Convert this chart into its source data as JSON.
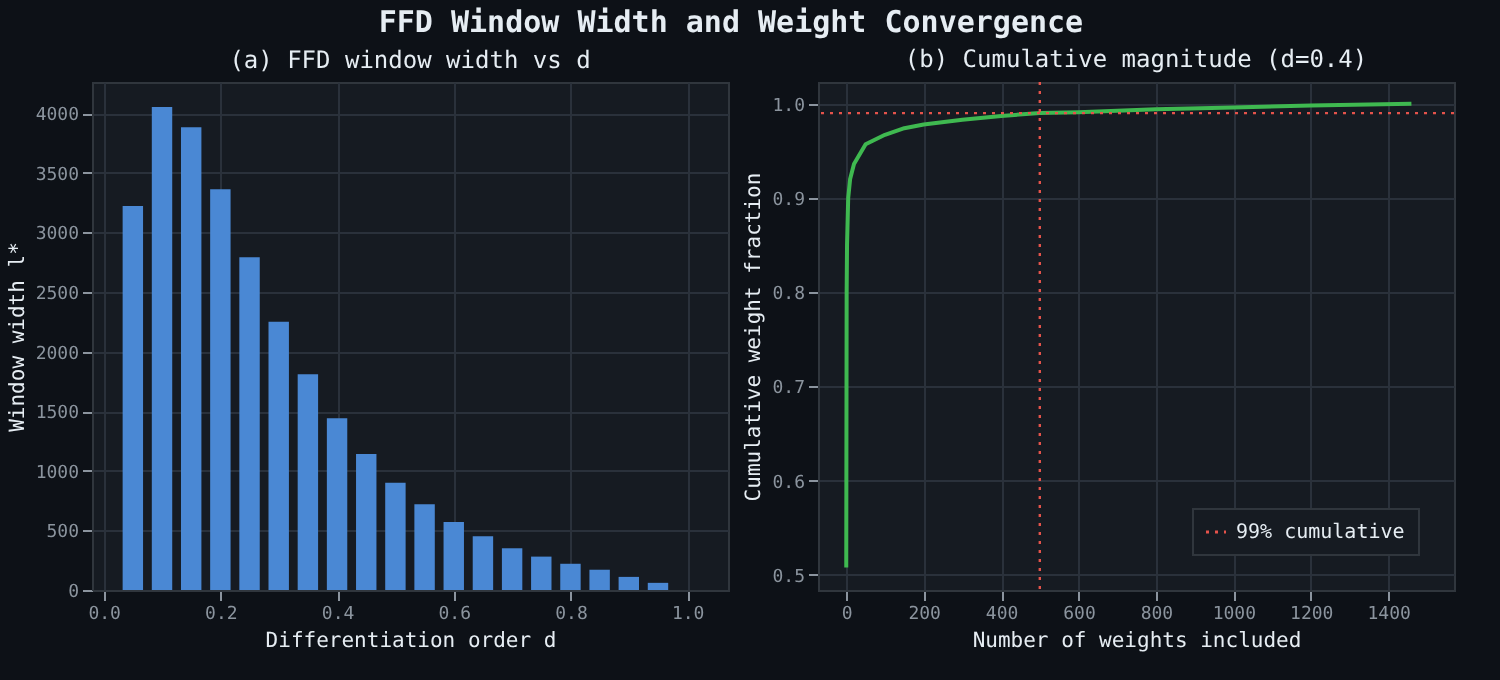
{
  "chart_data": [
    {
      "type": "bar",
      "title": "(a) FFD window width vs d",
      "xlabel": "Differentiation order d",
      "ylabel": "Window width l*",
      "annotations": [
        "FFD Window Width and Weight Convergence"
      ],
      "x": [
        0.05,
        0.1,
        0.15,
        0.2,
        0.25,
        0.3,
        0.35,
        0.4,
        0.45,
        0.5,
        0.55,
        0.6,
        0.65,
        0.7,
        0.75,
        0.8,
        0.85,
        0.9,
        0.95
      ],
      "series": [
        {
          "color": "#4a88d4",
          "values": [
            3220,
            4050,
            3880,
            3360,
            2790,
            2250,
            1810,
            1440,
            1140,
            900,
            720,
            570,
            450,
            350,
            280,
            220,
            170,
            110,
            60
          ]
        }
      ],
      "xlim": [
        -0.02,
        1.07
      ],
      "xticks": [
        {
          "value": 0,
          "label": "0.0"
        },
        0.2,
        0.4,
        0.6,
        0.8,
        {
          "value": 1,
          "label": "1.0"
        }
      ],
      "ylim": [
        0,
        4260
      ],
      "yticks": [
        0,
        500,
        1000,
        1500,
        2000,
        2500,
        3000,
        3500,
        4000
      ],
      "grid": true
    },
    {
      "type": "line",
      "title": "(b) Cumulative magnitude (d=0.4)",
      "xlabel": "Number of weights included",
      "ylabel": "Cumulative weight fraction",
      "x": [
        0,
        1,
        2,
        5,
        10,
        20,
        50,
        100,
        150,
        200,
        300,
        400,
        500,
        600,
        800,
        1000,
        1200,
        1460
      ],
      "series": [
        {
          "color": "#3fb950",
          "values": [
            0.508,
            0.8,
            0.85,
            0.9,
            0.92,
            0.936,
            0.957,
            0.967,
            0.974,
            0.978,
            0.983,
            0.987,
            0.99,
            0.991,
            0.994,
            0.996,
            0.998,
            1.0
          ]
        }
      ],
      "xlim": [
        -73,
        1570
      ],
      "xticks": [
        0,
        200,
        400,
        600,
        800,
        1000,
        1200,
        1400
      ],
      "ylim": [
        0.484,
        1.023
      ],
      "yticks": [
        0.5,
        0.6,
        0.7,
        0.8,
        0.9,
        {
          "value": 1,
          "label": "1.0"
        }
      ],
      "grid": true,
      "ref_lines": [
        {
          "axis": "y",
          "value": 0.99,
          "label": "99% cumulative",
          "color": "#e5534b",
          "line_style": "dotted"
        },
        {
          "axis": "x",
          "value": 500,
          "label": null,
          "color": "#e5534b",
          "line_style": "dotted"
        }
      ],
      "legend": "bottom right"
    }
  ]
}
